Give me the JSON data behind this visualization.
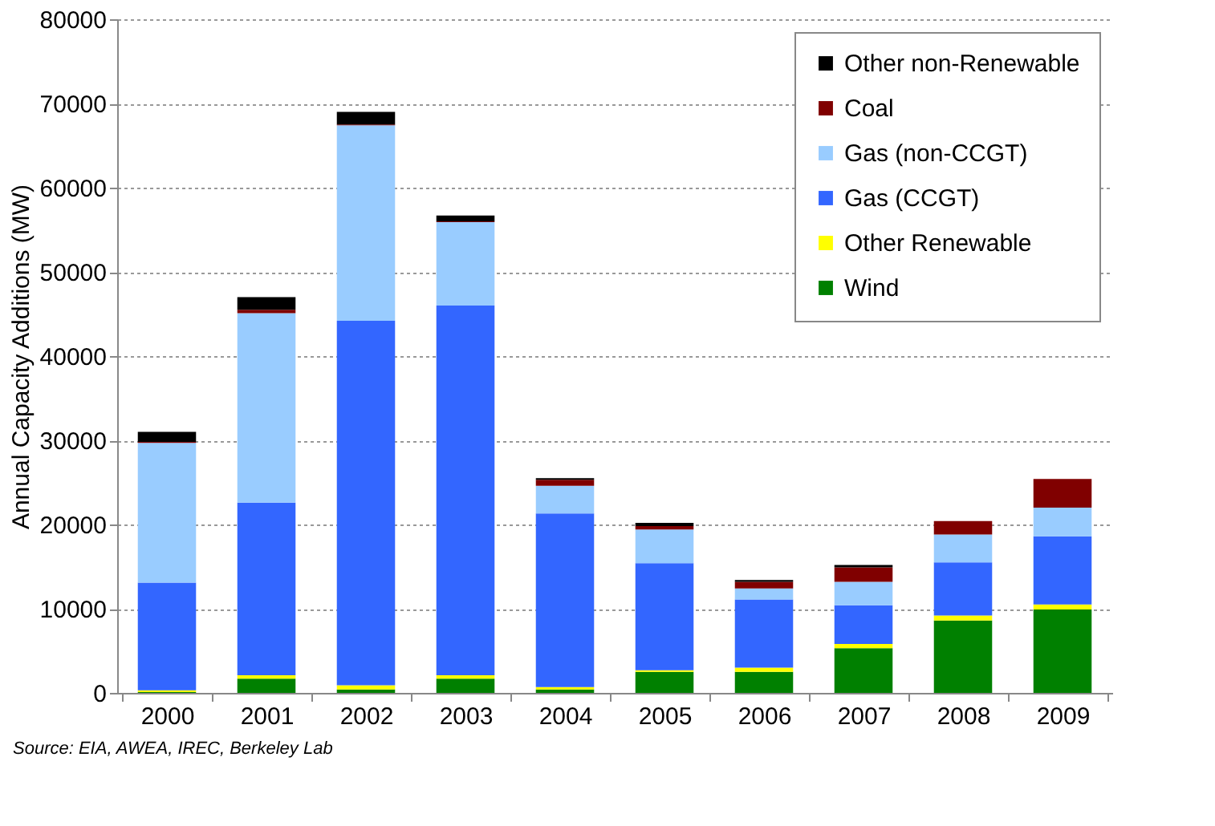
{
  "chart_data": {
    "type": "bar",
    "stacked": true,
    "ylabel": "Annual Capacity Additions (MW)",
    "categories": [
      "2000",
      "2001",
      "2002",
      "2003",
      "2004",
      "2005",
      "2006",
      "2007",
      "2008",
      "2009"
    ],
    "series": [
      {
        "name": "Wind",
        "color": "#008000",
        "values": [
          100,
          1700,
          400,
          1700,
          400,
          2500,
          2500,
          5300,
          8600,
          9900
        ]
      },
      {
        "name": "Other Renewable",
        "color": "#ffff00",
        "values": [
          200,
          400,
          500,
          400,
          300,
          200,
          500,
          500,
          600,
          600
        ]
      },
      {
        "name": "Gas (CCGT)",
        "color": "#3366ff",
        "values": [
          12800,
          20500,
          43300,
          43900,
          20600,
          12700,
          8100,
          4600,
          6300,
          8100
        ]
      },
      {
        "name": "Gas (non-CCGT)",
        "color": "#99ccff",
        "values": [
          16600,
          22500,
          23200,
          9900,
          3300,
          4000,
          1300,
          2800,
          3300,
          3400
        ]
      },
      {
        "name": "Coal",
        "color": "#800000",
        "values": [
          100,
          400,
          100,
          100,
          700,
          400,
          800,
          1700,
          1600,
          3400
        ]
      },
      {
        "name": "Other non-Renewable",
        "color": "#000000",
        "values": [
          1200,
          1500,
          1500,
          700,
          200,
          400,
          200,
          300,
          0,
          0
        ]
      }
    ],
    "ylim": [
      0,
      80000
    ],
    "yticks": [
      0,
      10000,
      20000,
      30000,
      40000,
      50000,
      60000,
      70000,
      80000
    ],
    "grid": "y",
    "legend": "top right",
    "annotations": [
      "Source: EIA, AWEA, IREC, Berkeley Lab"
    ]
  }
}
